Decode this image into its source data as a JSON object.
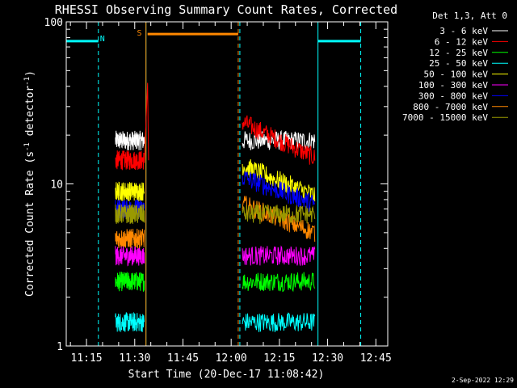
{
  "chart_data": {
    "type": "line",
    "title": "RHESSI Observing Summary Count Rates, Corrected",
    "xlabel": "Start Time (20-Dec-17 11:08:42)",
    "ylabel_main": "Corrected Count Rate (s",
    "ylabel_sup1": "-1",
    "ylabel_mid": " detector",
    "ylabel_sup2": "-1",
    "ylabel_end": ")",
    "y_scale": "log",
    "ylim": [
      1,
      100
    ],
    "y_ticks": [
      1,
      10,
      100
    ],
    "y_tick_labels": [
      "1",
      "10",
      "100"
    ],
    "xlim_minutes": [
      0,
      100
    ],
    "x_ticks_minutes": [
      6.3,
      21.3,
      36.3,
      51.3,
      66.3,
      81.3,
      96.3
    ],
    "x_tick_labels": [
      "11:15",
      "11:30",
      "11:45",
      "12:00",
      "12:15",
      "12:30",
      "12:45"
    ],
    "legend_placement": "right",
    "legend_header": "Det 1,3, Att 0",
    "series": [
      {
        "name": "3 - 6 keV",
        "color": "#ffffff",
        "segments": [
          {
            "start": 15.3,
            "end": 24.3,
            "level": 18.5
          },
          {
            "start": 54.8,
            "end": 77.3,
            "level": 18.5
          }
        ]
      },
      {
        "name": "6 - 12 keV",
        "color": "#ff0000",
        "segments": [
          {
            "start": 15.3,
            "end": 24.3,
            "level": 14.0,
            "spike_at": 25.3,
            "spike_to": 42
          },
          {
            "start": 54.8,
            "end": 77.3,
            "level_start": 24,
            "level_end": 14.5
          }
        ]
      },
      {
        "name": "12 - 25 keV",
        "color": "#00ff00",
        "segments": [
          {
            "start": 15.3,
            "end": 24.3,
            "level": 2.5
          },
          {
            "start": 54.8,
            "end": 77.3,
            "level": 2.5
          }
        ]
      },
      {
        "name": "25 - 50 keV",
        "color": "#00ffff",
        "segments": [
          {
            "start": 15.3,
            "end": 24.3,
            "level": 1.4
          },
          {
            "start": 54.8,
            "end": 77.3,
            "level": 1.4
          }
        ]
      },
      {
        "name": "50 - 100 keV",
        "color": "#ffff00",
        "segments": [
          {
            "start": 15.3,
            "end": 24.3,
            "level": 9.0
          },
          {
            "start": 54.8,
            "end": 77.3,
            "level_start": 13,
            "level_end": 8.5
          }
        ]
      },
      {
        "name": "100 - 300 keV",
        "color": "#ff00ff",
        "segments": [
          {
            "start": 15.3,
            "end": 24.3,
            "level": 3.6
          },
          {
            "start": 54.8,
            "end": 77.3,
            "level": 3.6
          }
        ]
      },
      {
        "name": "300 - 800 keV",
        "color": "#0000ff",
        "segments": [
          {
            "start": 15.3,
            "end": 24.3,
            "level": 7.0
          },
          {
            "start": 54.8,
            "end": 77.3,
            "level_start": 11,
            "level_end": 7.5
          }
        ]
      },
      {
        "name": "800 - 7000 keV",
        "color": "#ff8800",
        "segments": [
          {
            "start": 15.3,
            "end": 24.3,
            "level": 4.6
          },
          {
            "start": 54.8,
            "end": 77.3,
            "level_start": 7.5,
            "level_end": 5.0
          }
        ]
      },
      {
        "name": "7000 - 15000 keV",
        "color": "#999900",
        "segments": [
          {
            "start": 15.3,
            "end": 24.3,
            "level": 6.5
          },
          {
            "start": 54.8,
            "end": 77.3,
            "level": 6.5
          }
        ]
      }
    ],
    "annotations": [
      {
        "label": "N",
        "color": "#00ffff",
        "dashed_lines_minutes": [
          10.0,
          54.0,
          91.6
        ],
        "solid_lines_minutes": [
          24.8,
          78.3
        ],
        "bars": [
          {
            "start": 0,
            "end": 10.0,
            "level": 76
          },
          {
            "start": 78.3,
            "end": 91.6,
            "level": 76
          }
        ],
        "label_at": 10.5
      },
      {
        "label": "S",
        "color": "#ff8800",
        "dashed_lines_minutes": [
          53.5
        ],
        "solid_lines_minutes": [
          24.8
        ],
        "bars": [
          {
            "start": 25.3,
            "end": 53.5,
            "level": 84
          }
        ],
        "label_at": 22.0
      }
    ],
    "footer_date": "2-Sep-2022 12:29"
  }
}
